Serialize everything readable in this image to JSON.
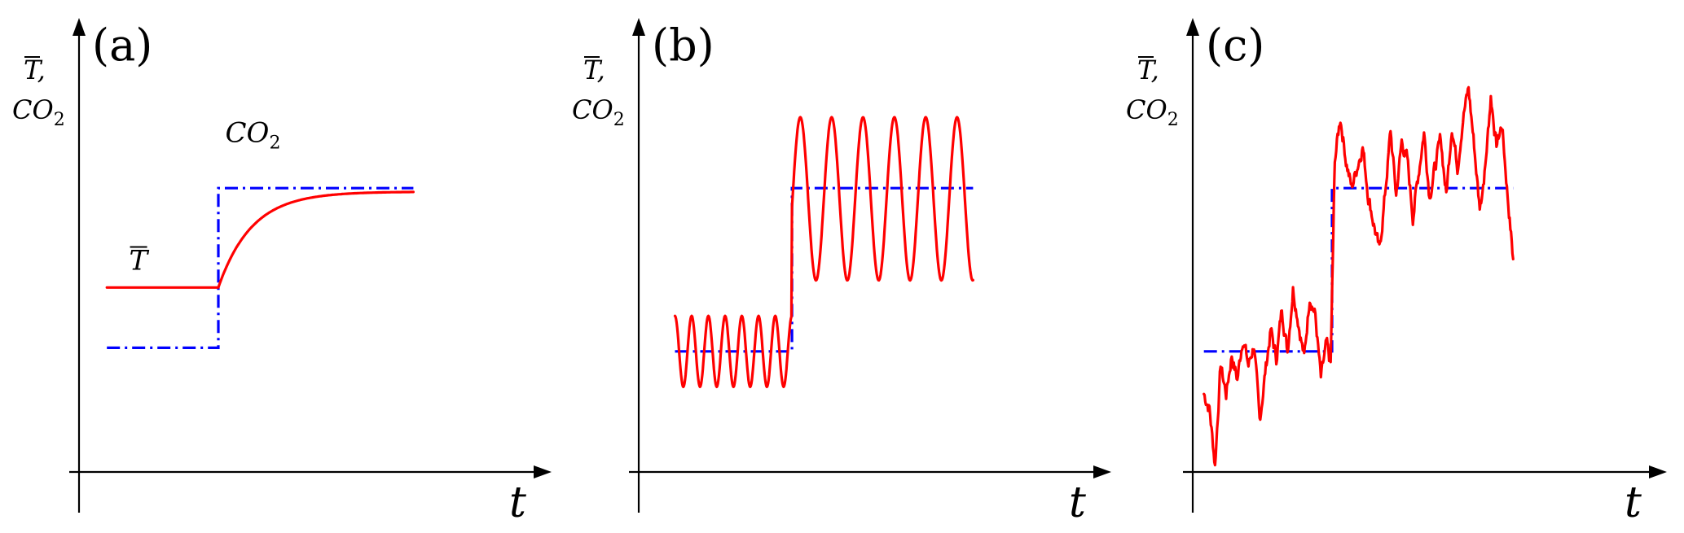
{
  "colors": {
    "temperature": "#ff0000",
    "co2": "#0000ff",
    "axis": "#000000"
  },
  "chart_data": [
    {
      "type": "line",
      "panel_label": "(a)",
      "y_label": [
        "T,",
        "CO",
        "2"
      ],
      "x_label": "t",
      "annotations": [
        {
          "text": "T",
          "overline": true,
          "x": 0.36,
          "y": 0.57
        },
        {
          "text": "CO",
          "subscript": "2",
          "x": 1.05,
          "y": 0.93
        }
      ],
      "xlim": [
        -0.25,
        2.6
      ],
      "ylim": [
        -0.05,
        1.25
      ],
      "series": [
        {
          "kind": "co2",
          "x": [
            0.2,
            1.0,
            1.0,
            2.4
          ],
          "y": [
            0.35,
            0.35,
            0.8,
            0.8
          ]
        },
        {
          "kind": "temperature",
          "model": "step_relax",
          "x_start": 0.2,
          "x_step": 1.0,
          "x_end": 2.4,
          "y_low": 0.52,
          "y_high": 0.79,
          "tau": 0.24
        }
      ]
    },
    {
      "type": "line",
      "panel_label": "(b)",
      "y_label": [
        "T,",
        "CO",
        "2"
      ],
      "x_label": "t",
      "xlim": [
        -0.25,
        2.6
      ],
      "ylim": [
        -0.05,
        1.25
      ],
      "series": [
        {
          "kind": "co2",
          "x": [
            0.26,
            1.1,
            1.1,
            2.4
          ],
          "y": [
            0.34,
            0.34,
            0.8,
            0.8
          ]
        },
        {
          "kind": "temperature",
          "model": "oscillation",
          "x_start": 0.26,
          "x_step": 1.1,
          "x_end": 2.4,
          "low": {
            "mean": 0.34,
            "amplitude": 0.1,
            "period": 0.12
          },
          "high": {
            "mean": 0.77,
            "amplitude": 0.23,
            "period": 0.225
          }
        }
      ]
    },
    {
      "type": "line",
      "panel_label": "(c)",
      "y_label": [
        "T,",
        "CO",
        "2"
      ],
      "x_label": "t",
      "xlim": [
        -0.25,
        2.6
      ],
      "ylim": [
        -0.05,
        1.25
      ],
      "series": [
        {
          "kind": "co2",
          "x": [
            0.08,
            1.0,
            1.0,
            2.3
          ],
          "y": [
            0.34,
            0.34,
            0.8,
            0.8
          ]
        },
        {
          "kind": "temperature",
          "model": "noisy",
          "x": [
            0.08,
            0.12,
            0.16,
            0.2,
            0.24,
            0.28,
            0.32,
            0.36,
            0.4,
            0.44,
            0.48,
            0.52,
            0.56,
            0.6,
            0.64,
            0.68,
            0.72,
            0.76,
            0.8,
            0.84,
            0.88,
            0.92,
            0.96,
            0.99,
            1.02,
            1.06,
            1.1,
            1.14,
            1.18,
            1.22,
            1.26,
            1.3,
            1.34,
            1.38,
            1.42,
            1.46,
            1.5,
            1.54,
            1.58,
            1.62,
            1.66,
            1.7,
            1.74,
            1.78,
            1.82,
            1.86,
            1.9,
            1.94,
            1.98,
            2.02,
            2.06,
            2.1,
            2.14,
            2.18,
            2.22,
            2.26,
            2.3
          ],
          "y": [
            0.22,
            0.18,
            0.02,
            0.3,
            0.22,
            0.33,
            0.26,
            0.38,
            0.3,
            0.36,
            0.14,
            0.28,
            0.4,
            0.32,
            0.46,
            0.34,
            0.52,
            0.42,
            0.32,
            0.5,
            0.44,
            0.26,
            0.36,
            0.3,
            0.88,
            1.0,
            0.88,
            0.8,
            0.86,
            0.92,
            0.78,
            0.7,
            0.62,
            0.78,
            0.96,
            0.78,
            0.93,
            0.88,
            0.72,
            0.84,
            0.96,
            0.78,
            0.86,
            0.94,
            0.78,
            0.98,
            0.86,
            1.0,
            1.08,
            0.92,
            0.74,
            0.86,
            1.06,
            0.92,
            0.98,
            0.78,
            0.6
          ]
        }
      ]
    }
  ]
}
